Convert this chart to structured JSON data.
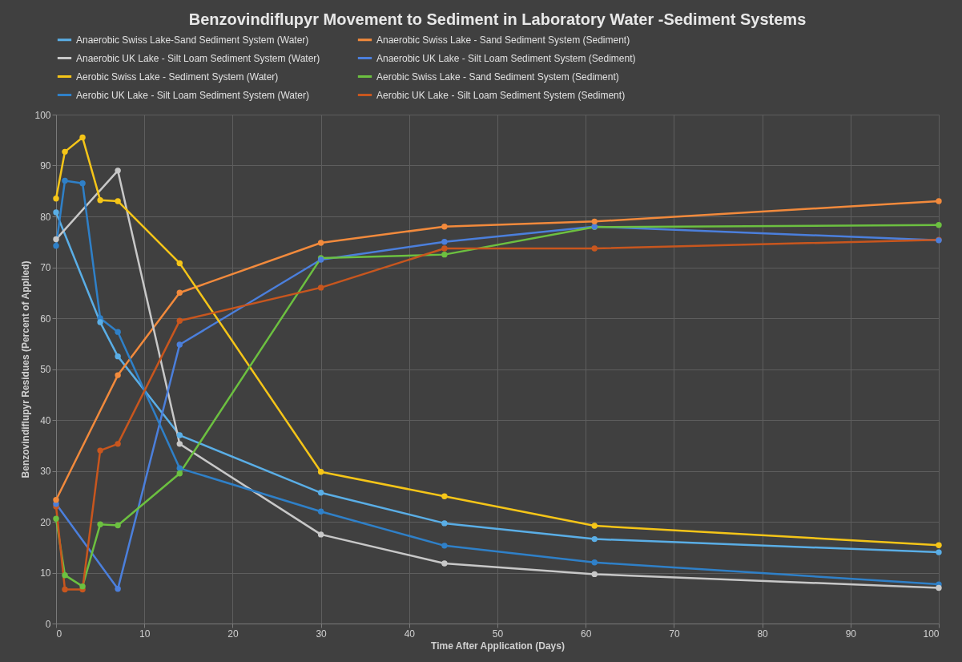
{
  "chart_data": {
    "type": "line",
    "title": "Benzovindiflupyr Movement to Sediment in Laboratory Water -Sediment Systems",
    "xlabel": "Time After Application (Days)",
    "ylabel": "Benzovindiflupyr Residues (Percent of Applied)",
    "xlim": [
      0,
      100
    ],
    "ylim": [
      0,
      100
    ],
    "xticks": [
      0,
      10,
      20,
      30,
      40,
      50,
      60,
      70,
      80,
      90,
      100
    ],
    "yticks": [
      0,
      10,
      20,
      30,
      40,
      50,
      60,
      70,
      80,
      90,
      100
    ],
    "grid": true,
    "legend": "top",
    "marker": "circle",
    "line_style": "solid",
    "series": [
      {
        "name": "Anaerobic Swiss Lake-Sand Sediment System (Water)",
        "color": "#5aaee6",
        "x": [
          0,
          5,
          7,
          14,
          30,
          44,
          61,
          100
        ],
        "values": [
          80.8,
          59.2,
          52.5,
          37,
          25.7,
          19.7,
          16.6,
          14
        ]
      },
      {
        "name": "Anaerobic Swiss Lake - Sand Sediment System (Sediment)",
        "color": "#f28a3c",
        "x": [
          0,
          7,
          14,
          30,
          44,
          61,
          100
        ],
        "values": [
          24.3,
          48.8,
          65,
          74.8,
          78,
          79,
          83
        ]
      },
      {
        "name": "Anaerobic UK Lake - Silt Loam Sediment System (Water)",
        "color": "#c8c8c8",
        "x": [
          0,
          7,
          14,
          30,
          44,
          61,
          100
        ],
        "values": [
          75.5,
          89,
          35.3,
          17.5,
          11.8,
          9.7,
          7
        ]
      },
      {
        "name": "Anaerobic UK Lake - Silt Loam Sediment System (Sediment)",
        "color": "#4b7fdc",
        "x": [
          0,
          7,
          14,
          30,
          44,
          61,
          100
        ],
        "values": [
          23.5,
          6.8,
          54.8,
          71.5,
          75,
          78,
          75.3
        ]
      },
      {
        "name": "Aerobic Swiss Lake - Sediment System (Water)",
        "color": "#f5c518",
        "x": [
          0,
          1,
          3,
          5,
          7,
          14,
          30,
          44,
          61,
          100
        ],
        "values": [
          83.5,
          92.7,
          95.5,
          83.2,
          83,
          70.8,
          29.8,
          25,
          19.2,
          15.4
        ]
      },
      {
        "name": "Aerobic Swiss Lake - Sand Sediment System (Sediment)",
        "color": "#6cc040",
        "x": [
          0,
          1,
          3,
          5,
          7,
          14,
          30,
          44,
          61,
          100
        ],
        "values": [
          20.6,
          9.5,
          7.3,
          19.5,
          19.3,
          29.5,
          71.8,
          72.5,
          77.9,
          78.3
        ]
      },
      {
        "name": "Aerobic UK Lake - Silt Loam Sediment System (Water)",
        "color": "#2f80c8",
        "x": [
          0,
          1,
          3,
          5,
          7,
          14,
          30,
          44,
          61,
          100
        ],
        "values": [
          74.2,
          87,
          86.5,
          60,
          57.3,
          30.5,
          22,
          15.3,
          12,
          7.7
        ]
      },
      {
        "name": "Aerobic UK Lake - Silt Loam Sediment System (Sediment)",
        "color": "#c8561e",
        "x": [
          0,
          1,
          3,
          5,
          7,
          14,
          30,
          44,
          61,
          100
        ],
        "values": [
          23,
          6.7,
          6.7,
          34,
          35.3,
          59.5,
          66,
          73.7,
          73.7,
          75.4
        ]
      }
    ]
  }
}
